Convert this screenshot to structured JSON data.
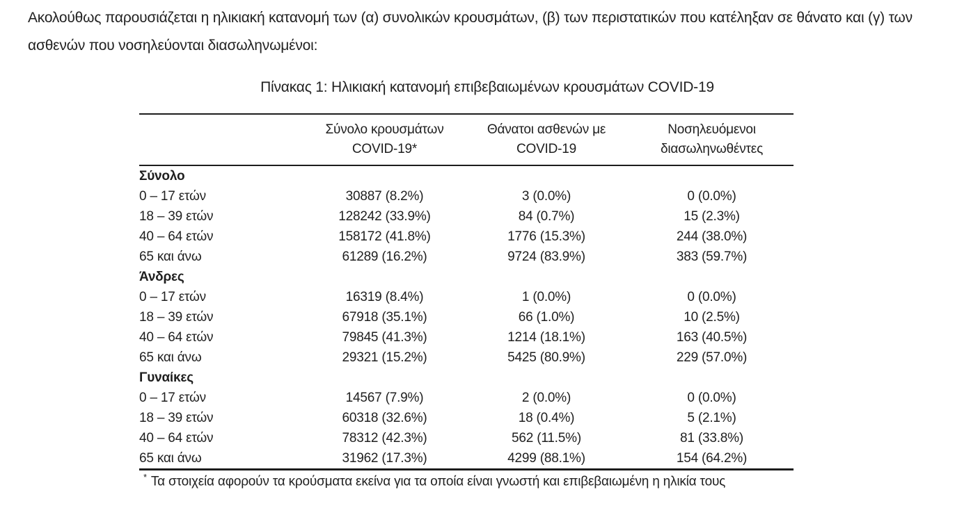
{
  "intro": {
    "line1": "Ακολούθως παρουσιάζεται η ηλικιακή κατανομή των (α) συνολικών κρουσμάτων, (β) των περιστατικών που κατέληξαν σε θάνατο και (γ) των",
    "line2": "ασθενών που νοσηλεύονται διασωληνωμένοι:"
  },
  "table": {
    "title": "Πίνακας 1: Ηλικιακή κατανομή επιβεβαιωμένων κρουσμάτων COVID-19",
    "headers": [
      {
        "line1": "Σύνολο κρουσμάτων",
        "line2": "COVID-19*"
      },
      {
        "line1": "Θάνατοι ασθενών με",
        "line2": "COVID-19"
      },
      {
        "line1": "Νοσηλευόμενοι",
        "line2": "διασωληνωθέντες"
      }
    ],
    "sections": [
      {
        "label": "Σύνολο",
        "rows": [
          {
            "label": "0 – 17 ετών",
            "cases": "30887 (8.2%)",
            "deaths": "3 (0.0%)",
            "intubated": "0 (0.0%)"
          },
          {
            "label": "18 – 39 ετών",
            "cases": "128242 (33.9%)",
            "deaths": "84 (0.7%)",
            "intubated": "15 (2.3%)"
          },
          {
            "label": "40 – 64 ετών",
            "cases": "158172 (41.8%)",
            "deaths": "1776 (15.3%)",
            "intubated": "244 (38.0%)"
          },
          {
            "label": "65 και άνω",
            "cases": "61289 (16.2%)",
            "deaths": "9724 (83.9%)",
            "intubated": "383 (59.7%)"
          }
        ]
      },
      {
        "label": "Άνδρες",
        "rows": [
          {
            "label": "0 – 17 ετών",
            "cases": "16319 (8.4%)",
            "deaths": "1 (0.0%)",
            "intubated": "0 (0.0%)"
          },
          {
            "label": "18 – 39 ετών",
            "cases": "67918 (35.1%)",
            "deaths": "66 (1.0%)",
            "intubated": "10 (2.5%)"
          },
          {
            "label": "40 – 64 ετών",
            "cases": "79845 (41.3%)",
            "deaths": "1214 (18.1%)",
            "intubated": "163 (40.5%)"
          },
          {
            "label": "65 και άνω",
            "cases": "29321 (15.2%)",
            "deaths": "5425 (80.9%)",
            "intubated": "229 (57.0%)"
          }
        ]
      },
      {
        "label": "Γυναίκες",
        "rows": [
          {
            "label": "0 – 17 ετών",
            "cases": "14567 (7.9%)",
            "deaths": "2 (0.0%)",
            "intubated": "0 (0.0%)"
          },
          {
            "label": "18 – 39 ετών",
            "cases": "60318 (32.6%)",
            "deaths": "18 (0.4%)",
            "intubated": "5 (2.1%)"
          },
          {
            "label": "40 – 64 ετών",
            "cases": "78312 (42.3%)",
            "deaths": "562 (11.5%)",
            "intubated": "81 (33.8%)"
          },
          {
            "label": "65 και άνω",
            "cases": "31962 (17.3%)",
            "deaths": "4299 (88.1%)",
            "intubated": "154 (64.2%)"
          }
        ]
      }
    ],
    "footnote": {
      "marker": "*",
      "text": "Τα στοιχεία αφορούν τα κρούσματα εκείνα για τα οποία είναι γνωστή και επιβεβαιωμένη η ηλικία τους"
    }
  }
}
